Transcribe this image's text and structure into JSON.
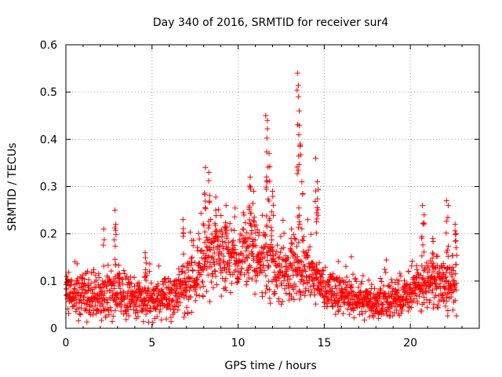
{
  "chart_data": {
    "type": "scatter",
    "title": "Day 340 of 2016, SRMTID for receiver sur4",
    "xlabel": "GPS time / hours",
    "ylabel": "SRMTID / TECUs",
    "xlim": [
      0,
      24
    ],
    "ylim": [
      0,
      0.6
    ],
    "xticks": [
      0,
      5,
      10,
      15,
      20
    ],
    "yticks": [
      0,
      0.1,
      0.2,
      0.3,
      0.4,
      0.5,
      0.6
    ],
    "xtick_labels": [
      "0",
      "5",
      "10",
      "15",
      "20"
    ],
    "ytick_labels": [
      "0",
      "0.1",
      "0.2",
      "0.3",
      "0.4",
      "0.5",
      "0.6"
    ],
    "grid": true,
    "marker": "+",
    "color": "#ff0000",
    "series": [
      {
        "name": "SRMTID",
        "profile_x": [
          0,
          1,
          2,
          3,
          4,
          5,
          6,
          7,
          8,
          8.5,
          9,
          10,
          10.5,
          11,
          11.5,
          12,
          13,
          13.5,
          14,
          15,
          16,
          17,
          18,
          19,
          20,
          20.5,
          21,
          22,
          22.7
        ],
        "profile_center": [
          0.07,
          0.065,
          0.065,
          0.07,
          0.06,
          0.06,
          0.065,
          0.08,
          0.13,
          0.16,
          0.15,
          0.14,
          0.17,
          0.15,
          0.16,
          0.14,
          0.11,
          0.13,
          0.12,
          0.08,
          0.07,
          0.065,
          0.055,
          0.06,
          0.075,
          0.09,
          0.09,
          0.09,
          0.09
        ],
        "profile_spread": [
          0.03,
          0.03,
          0.035,
          0.035,
          0.03,
          0.03,
          0.03,
          0.04,
          0.05,
          0.06,
          0.05,
          0.05,
          0.06,
          0.06,
          0.06,
          0.05,
          0.04,
          0.05,
          0.045,
          0.03,
          0.03,
          0.025,
          0.025,
          0.025,
          0.03,
          0.035,
          0.035,
          0.04,
          0.04
        ],
        "time_range": [
          0,
          22.7
        ],
        "point_count": 1900,
        "peaks": [
          {
            "x": 0.05,
            "y": 0.11
          },
          {
            "x": 2.2,
            "y": 0.21
          },
          {
            "x": 2.85,
            "y": 0.25
          },
          {
            "x": 2.9,
            "y": 0.22
          },
          {
            "x": 4.6,
            "y": 0.16
          },
          {
            "x": 6.8,
            "y": 0.23
          },
          {
            "x": 8.1,
            "y": 0.34
          },
          {
            "x": 8.3,
            "y": 0.33
          },
          {
            "x": 8.7,
            "y": 0.25
          },
          {
            "x": 9.3,
            "y": 0.26
          },
          {
            "x": 10.7,
            "y": 0.32
          },
          {
            "x": 10.9,
            "y": 0.29
          },
          {
            "x": 11.6,
            "y": 0.45
          },
          {
            "x": 11.7,
            "y": 0.44
          },
          {
            "x": 11.8,
            "y": 0.37
          },
          {
            "x": 12.0,
            "y": 0.29
          },
          {
            "x": 13.1,
            "y": 0.21
          },
          {
            "x": 13.45,
            "y": 0.54
          },
          {
            "x": 13.5,
            "y": 0.49
          },
          {
            "x": 13.55,
            "y": 0.46
          },
          {
            "x": 13.6,
            "y": 0.39
          },
          {
            "x": 13.7,
            "y": 0.31
          },
          {
            "x": 14.5,
            "y": 0.36
          },
          {
            "x": 14.6,
            "y": 0.31
          },
          {
            "x": 20.7,
            "y": 0.26
          },
          {
            "x": 20.8,
            "y": 0.24
          },
          {
            "x": 21.3,
            "y": 0.19
          },
          {
            "x": 22.1,
            "y": 0.27
          },
          {
            "x": 22.2,
            "y": 0.26
          },
          {
            "x": 22.6,
            "y": 0.22
          }
        ]
      }
    ]
  }
}
